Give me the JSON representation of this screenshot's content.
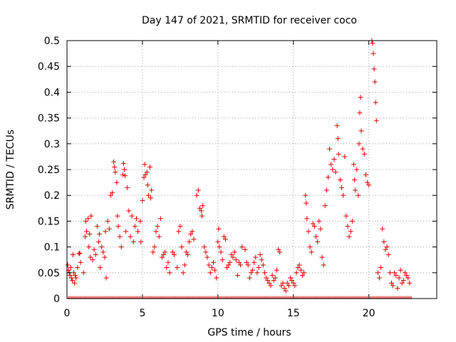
{
  "chart_data": {
    "type": "scatter",
    "title": "Day 147 of 2021, SRMTID for receiver coco",
    "xlabel": "GPS time / hours",
    "ylabel": "SRMTID / TECUs",
    "xlim": [
      0,
      24.5
    ],
    "ylim": [
      0,
      0.5
    ],
    "grid": true,
    "marker": "+",
    "color": "#e00000",
    "x_ticks": [
      {
        "v": 0,
        "label": "0"
      },
      {
        "v": 5,
        "label": "5"
      },
      {
        "v": 10,
        "label": "10"
      },
      {
        "v": 15,
        "label": "15"
      },
      {
        "v": 20,
        "label": "20"
      }
    ],
    "y_ticks": [
      {
        "v": 0,
        "label": "0"
      },
      {
        "v": 0.05,
        "label": "0.05"
      },
      {
        "v": 0.1,
        "label": "0.1"
      },
      {
        "v": 0.15,
        "label": "0.15"
      },
      {
        "v": 0.2,
        "label": "0.2"
      },
      {
        "v": 0.25,
        "label": "0.25"
      },
      {
        "v": 0.3,
        "label": "0.3"
      },
      {
        "v": 0.35,
        "label": "0.35"
      },
      {
        "v": 0.4,
        "label": "0.4"
      },
      {
        "v": 0.45,
        "label": "0.45"
      },
      {
        "v": 0.5,
        "label": "0.5"
      }
    ],
    "series": [
      {
        "name": "SRMTID",
        "points": [
          [
            0.05,
            0.065
          ],
          [
            0.1,
            0.055
          ],
          [
            0.15,
            0.05
          ],
          [
            0.2,
            0.045
          ],
          [
            0.25,
            0.06
          ],
          [
            0.3,
            0.04
          ],
          [
            0.35,
            0.035
          ],
          [
            0.4,
            0.085
          ],
          [
            0.45,
            0.05
          ],
          [
            0.5,
            0.03
          ],
          [
            0.55,
            0.045
          ],
          [
            0.6,
            0.04
          ],
          [
            0.7,
            0.06
          ],
          [
            0.8,
            0.087
          ],
          [
            0.85,
            0.088
          ],
          [
            0.9,
            0.07
          ],
          [
            1.1,
            0.05
          ],
          [
            1.2,
            0.12
          ],
          [
            1.25,
            0.15
          ],
          [
            1.3,
            0.13
          ],
          [
            1.4,
            0.155
          ],
          [
            1.45,
            0.1
          ],
          [
            1.5,
            0.125
          ],
          [
            1.55,
            0.08
          ],
          [
            1.6,
            0.16
          ],
          [
            1.7,
            0.075
          ],
          [
            1.8,
            0.095
          ],
          [
            1.9,
            0.085
          ],
          [
            2.0,
            0.14
          ],
          [
            2.1,
            0.11
          ],
          [
            2.15,
            0.125
          ],
          [
            2.2,
            0.06
          ],
          [
            2.3,
            0.1
          ],
          [
            2.4,
            0.09
          ],
          [
            2.5,
            0.08
          ],
          [
            2.55,
            0.13
          ],
          [
            2.6,
            0.04
          ],
          [
            2.7,
            0.15
          ],
          [
            2.8,
            0.135
          ],
          [
            2.9,
            0.2
          ],
          [
            3.0,
            0.205
          ],
          [
            3.1,
            0.265
          ],
          [
            3.15,
            0.255
          ],
          [
            3.2,
            0.245
          ],
          [
            3.3,
            0.225
          ],
          [
            3.35,
            0.16
          ],
          [
            3.4,
            0.14
          ],
          [
            3.5,
            0.12
          ],
          [
            3.6,
            0.1
          ],
          [
            3.7,
            0.24
          ],
          [
            3.75,
            0.262
          ],
          [
            3.8,
            0.25
          ],
          [
            3.85,
            0.238
          ],
          [
            3.9,
            0.13
          ],
          [
            4.0,
            0.215
          ],
          [
            4.1,
            0.17
          ],
          [
            4.2,
            0.12
          ],
          [
            4.3,
            0.16
          ],
          [
            4.4,
            0.11
          ],
          [
            4.5,
            0.14
          ],
          [
            4.6,
            0.155
          ],
          [
            4.7,
            0.13
          ],
          [
            4.85,
            0.15
          ],
          [
            4.9,
            0.11
          ],
          [
            5.0,
            0.19
          ],
          [
            5.1,
            0.235
          ],
          [
            5.15,
            0.26
          ],
          [
            5.2,
            0.24
          ],
          [
            5.3,
            0.245
          ],
          [
            5.35,
            0.22
          ],
          [
            5.4,
            0.2
          ],
          [
            5.5,
            0.255
          ],
          [
            5.55,
            0.195
          ],
          [
            5.6,
            0.21
          ],
          [
            5.7,
            0.09
          ],
          [
            5.8,
            0.1
          ],
          [
            5.9,
            0.13
          ],
          [
            6.0,
            0.14
          ],
          [
            6.1,
            0.12
          ],
          [
            6.2,
            0.155
          ],
          [
            6.3,
            0.08
          ],
          [
            6.4,
            0.085
          ],
          [
            6.5,
            0.09
          ],
          [
            6.6,
            0.06
          ],
          [
            6.7,
            0.07
          ],
          [
            6.8,
            0.05
          ],
          [
            7.0,
            0.09
          ],
          [
            7.1,
            0.085
          ],
          [
            7.3,
            0.06
          ],
          [
            7.4,
            0.13
          ],
          [
            7.5,
            0.14
          ],
          [
            7.6,
            0.1
          ],
          [
            7.7,
            0.05
          ],
          [
            7.8,
            0.065
          ],
          [
            7.9,
            0.09
          ],
          [
            8.0,
            0.085
          ],
          [
            8.1,
            0.11
          ],
          [
            8.2,
            0.125
          ],
          [
            8.3,
            0.13
          ],
          [
            8.4,
            0.115
          ],
          [
            8.6,
            0.2
          ],
          [
            8.7,
            0.21
          ],
          [
            8.8,
            0.175
          ],
          [
            8.9,
            0.17
          ],
          [
            8.95,
            0.16
          ],
          [
            9.0,
            0.18
          ],
          [
            9.1,
            0.1
          ],
          [
            9.2,
            0.09
          ],
          [
            9.3,
            0.08
          ],
          [
            9.4,
            0.065
          ],
          [
            9.5,
            0.05
          ],
          [
            9.6,
            0.06
          ],
          [
            9.7,
            0.07
          ],
          [
            9.8,
            0.055
          ],
          [
            9.9,
            0.04
          ],
          [
            10.0,
            0.11
          ],
          [
            10.05,
            0.135
          ],
          [
            10.1,
            0.1
          ],
          [
            10.2,
            0.09
          ],
          [
            10.3,
            0.075
          ],
          [
            10.4,
            0.12
          ],
          [
            10.5,
            0.115
          ],
          [
            10.6,
            0.06
          ],
          [
            10.7,
            0.065
          ],
          [
            10.8,
            0.07
          ],
          [
            10.9,
            0.085
          ],
          [
            11.0,
            0.08
          ],
          [
            11.1,
            0.09
          ],
          [
            11.2,
            0.075
          ],
          [
            11.3,
            0.045
          ],
          [
            11.4,
            0.07
          ],
          [
            11.5,
            0.065
          ],
          [
            11.6,
            0.1
          ],
          [
            11.8,
            0.095
          ],
          [
            11.9,
            0.07
          ],
          [
            12.0,
            0.065
          ],
          [
            12.1,
            0.04
          ],
          [
            12.2,
            0.05
          ],
          [
            12.3,
            0.055
          ],
          [
            12.4,
            0.07
          ],
          [
            12.5,
            0.08
          ],
          [
            12.6,
            0.05
          ],
          [
            12.7,
            0.06
          ],
          [
            12.8,
            0.085
          ],
          [
            12.9,
            0.075
          ],
          [
            13.0,
            0.065
          ],
          [
            13.1,
            0.05
          ],
          [
            13.2,
            0.04
          ],
          [
            13.3,
            0.035
          ],
          [
            13.4,
            0.03
          ],
          [
            13.5,
            0.025
          ],
          [
            13.6,
            0.045
          ],
          [
            13.7,
            0.035
          ],
          [
            13.8,
            0.04
          ],
          [
            13.9,
            0.055
          ],
          [
            14.0,
            0.095
          ],
          [
            14.1,
            0.09
          ],
          [
            14.2,
            0.025
          ],
          [
            14.3,
            0.03
          ],
          [
            14.4,
            0.02
          ],
          [
            14.5,
            0.015
          ],
          [
            14.6,
            0.03
          ],
          [
            14.7,
            0.025
          ],
          [
            14.8,
            0.04
          ],
          [
            14.9,
            0.035
          ],
          [
            15.0,
            0.03
          ],
          [
            15.1,
            0.025
          ],
          [
            15.2,
            0.05
          ],
          [
            15.3,
            0.06
          ],
          [
            15.4,
            0.065
          ],
          [
            15.5,
            0.055
          ],
          [
            15.6,
            0.045
          ],
          [
            15.7,
            0.05
          ],
          [
            15.8,
            0.2
          ],
          [
            15.85,
            0.185
          ],
          [
            15.9,
            0.155
          ],
          [
            16.0,
            0.13
          ],
          [
            16.1,
            0.1
          ],
          [
            16.2,
            0.09
          ],
          [
            16.3,
            0.145
          ],
          [
            16.4,
            0.14
          ],
          [
            16.5,
            0.12
          ],
          [
            16.6,
            0.11
          ],
          [
            16.7,
            0.15
          ],
          [
            16.8,
            0.135
          ],
          [
            16.9,
            0.08
          ],
          [
            17.0,
            0.065
          ],
          [
            17.1,
            0.18
          ],
          [
            17.2,
            0.21
          ],
          [
            17.3,
            0.235
          ],
          [
            17.4,
            0.29
          ],
          [
            17.5,
            0.26
          ],
          [
            17.6,
            0.25
          ],
          [
            17.7,
            0.27
          ],
          [
            17.8,
            0.245
          ],
          [
            17.9,
            0.335
          ],
          [
            17.95,
            0.31
          ],
          [
            18.0,
            0.28
          ],
          [
            18.1,
            0.23
          ],
          [
            18.2,
            0.215
          ],
          [
            18.3,
            0.2
          ],
          [
            18.4,
            0.275
          ],
          [
            18.5,
            0.16
          ],
          [
            18.6,
            0.14
          ],
          [
            18.7,
            0.12
          ],
          [
            18.8,
            0.13
          ],
          [
            18.9,
            0.15
          ],
          [
            19.0,
            0.26
          ],
          [
            19.05,
            0.23
          ],
          [
            19.1,
            0.21
          ],
          [
            19.2,
            0.25
          ],
          [
            19.3,
            0.2
          ],
          [
            19.35,
            0.3
          ],
          [
            19.4,
            0.36
          ],
          [
            19.45,
            0.39
          ],
          [
            19.5,
            0.325
          ],
          [
            19.6,
            0.29
          ],
          [
            19.7,
            0.28
          ],
          [
            19.8,
            0.24
          ],
          [
            19.9,
            0.225
          ],
          [
            20.0,
            0.22
          ],
          [
            20.2,
            0.5
          ],
          [
            20.25,
            0.495
          ],
          [
            20.3,
            0.475
          ],
          [
            20.35,
            0.445
          ],
          [
            20.4,
            0.42
          ],
          [
            20.45,
            0.38
          ],
          [
            20.5,
            0.345
          ],
          [
            20.6,
            0.05
          ],
          [
            20.7,
            0.04
          ],
          [
            20.8,
            0.06
          ],
          [
            20.9,
            0.135
          ],
          [
            21.0,
            0.11
          ],
          [
            21.1,
            0.095
          ],
          [
            21.2,
            0.1
          ],
          [
            21.3,
            0.085
          ],
          [
            21.4,
            0.05
          ],
          [
            21.5,
            0.03
          ],
          [
            21.6,
            0.025
          ],
          [
            21.7,
            0.05
          ],
          [
            21.8,
            0.045
          ],
          [
            21.9,
            0.02
          ],
          [
            22.0,
            0.04
          ],
          [
            22.1,
            0.055
          ],
          [
            22.2,
            0.03
          ],
          [
            22.3,
            0.035
          ],
          [
            22.4,
            0.05
          ],
          [
            22.5,
            0.045
          ],
          [
            22.6,
            0.04
          ],
          [
            22.7,
            0.03
          ]
        ]
      }
    ]
  }
}
